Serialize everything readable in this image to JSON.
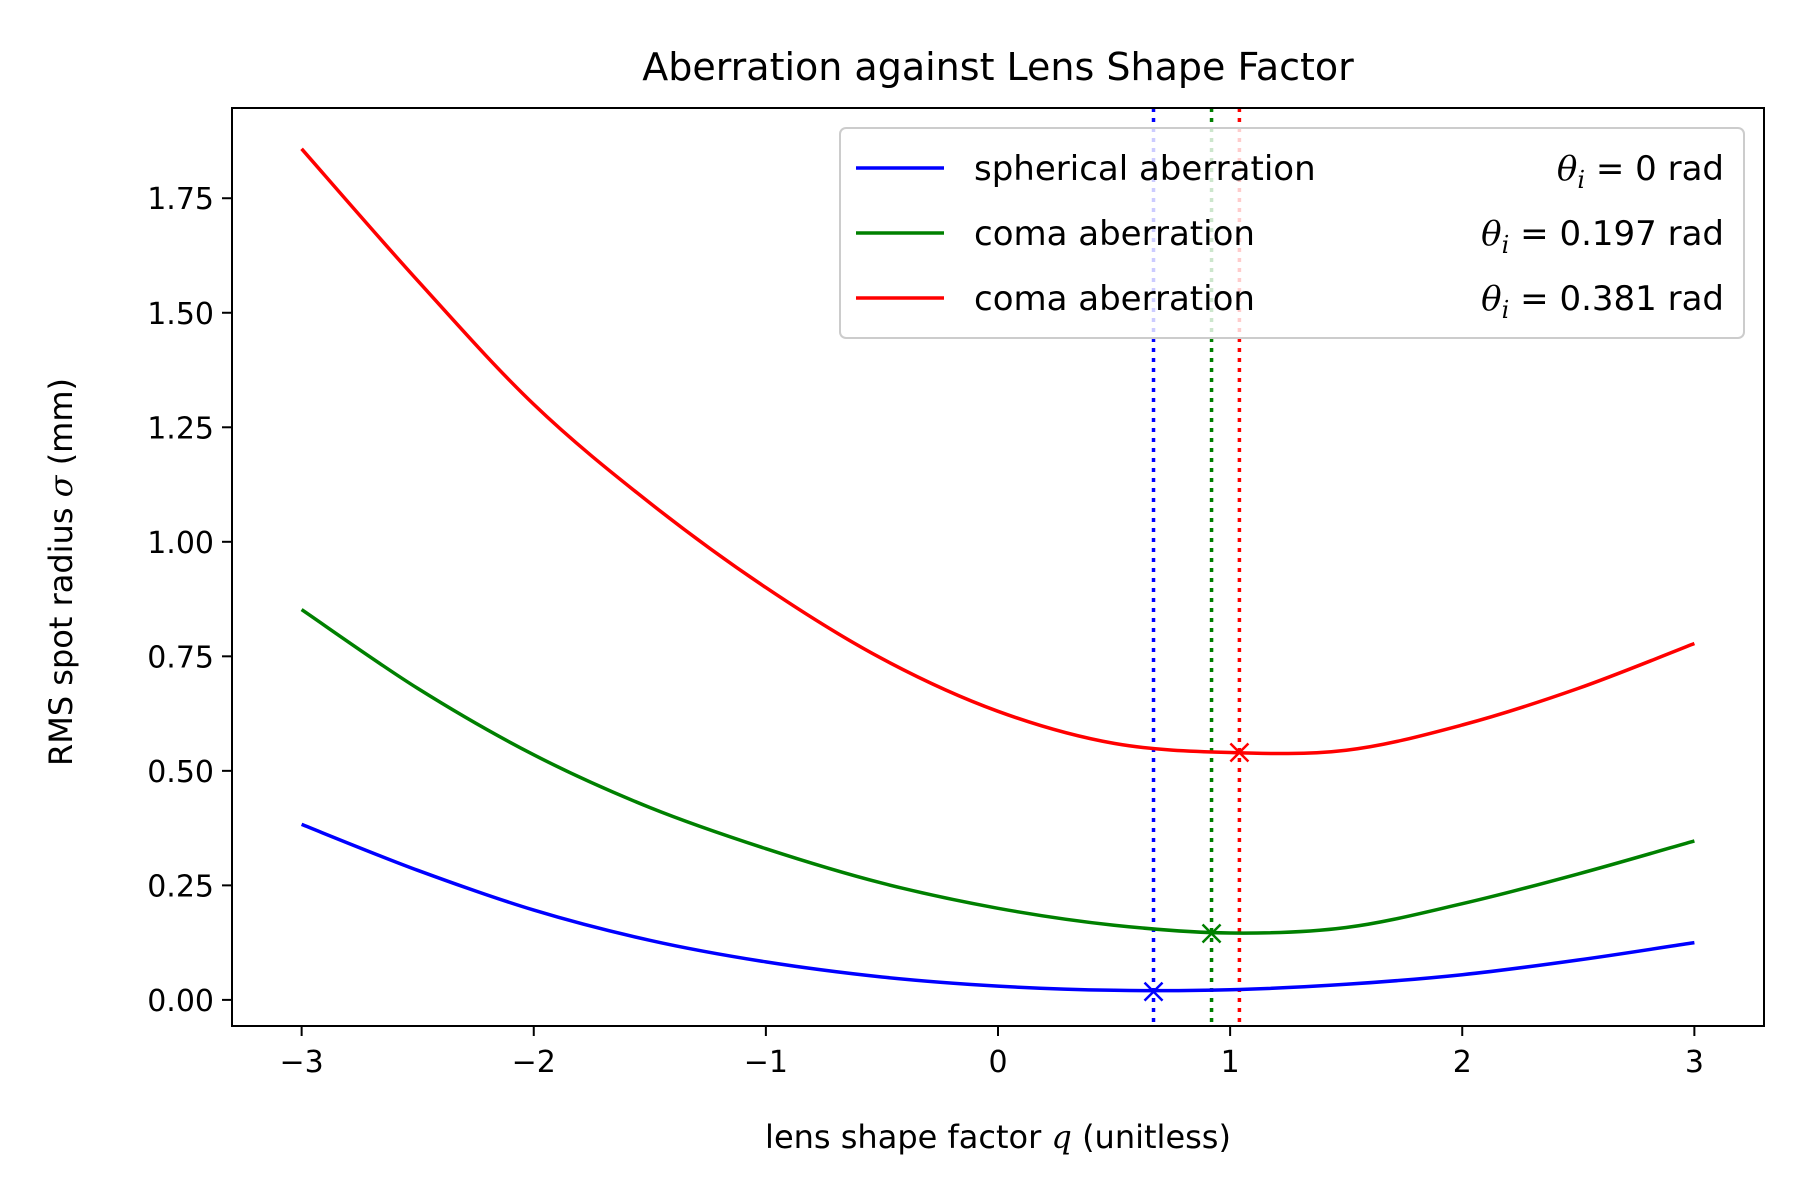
{
  "chart_data": {
    "type": "line",
    "title": "Aberration against Lens Shape Factor",
    "xlabel": "lens shape factor q (unitless)",
    "xlabel_parts": {
      "before": "lens shape factor ",
      "var": "q",
      "after": " (unitless)"
    },
    "ylabel": "RMS spot radius σ (mm)",
    "ylabel_parts": {
      "before": "RMS spot radius ",
      "var": "σ",
      "after": " (mm)"
    },
    "xlim": [
      -3.3,
      3.3
    ],
    "ylim": [
      -0.057,
      1.947
    ],
    "xticks": [
      -3,
      -2,
      -1,
      0,
      1,
      2,
      3
    ],
    "xtick_labels": [
      "−3",
      "−2",
      "−1",
      "0",
      "1",
      "2",
      "3"
    ],
    "yticks": [
      0.0,
      0.25,
      0.5,
      0.75,
      1.0,
      1.25,
      1.5,
      1.75
    ],
    "ytick_labels": [
      "0.00",
      "0.25",
      "0.50",
      "0.75",
      "1.00",
      "1.25",
      "1.50",
      "1.75"
    ],
    "grid": false,
    "legend_position": "top-right",
    "x": [
      -3.0,
      -2.5,
      -2.0,
      -1.5,
      -1.0,
      -0.5,
      0.0,
      0.5,
      1.0,
      1.5,
      2.0,
      2.5,
      3.0
    ],
    "series": [
      {
        "name": "spherical aberration",
        "angle_label": "θ_i = 0 rad",
        "angle_value": "0",
        "color": "#0000ff",
        "values": [
          0.383,
          0.283,
          0.196,
          0.13,
          0.083,
          0.05,
          0.03,
          0.021,
          0.022,
          0.034,
          0.055,
          0.087,
          0.125
        ],
        "minimum": {
          "x": 0.67,
          "y": 0.018
        }
      },
      {
        "name": "coma aberration",
        "angle_label": "θ_i = 0.197 rad",
        "angle_value": "0.197",
        "color": "#008000",
        "values": [
          0.852,
          0.68,
          0.535,
          0.42,
          0.33,
          0.255,
          0.2,
          0.163,
          0.146,
          0.158,
          0.21,
          0.275,
          0.347
        ],
        "minimum": {
          "x": 0.92,
          "y": 0.145
        }
      },
      {
        "name": "coma aberration",
        "angle_label": "θ_i = 0.381 rad",
        "angle_value": "0.381",
        "color": "#ff0000",
        "values": [
          1.858,
          1.57,
          1.3,
          1.085,
          0.9,
          0.745,
          0.63,
          0.56,
          0.54,
          0.545,
          0.6,
          0.68,
          0.778
        ],
        "minimum": {
          "x": 1.04,
          "y": 0.54
        }
      }
    ]
  }
}
